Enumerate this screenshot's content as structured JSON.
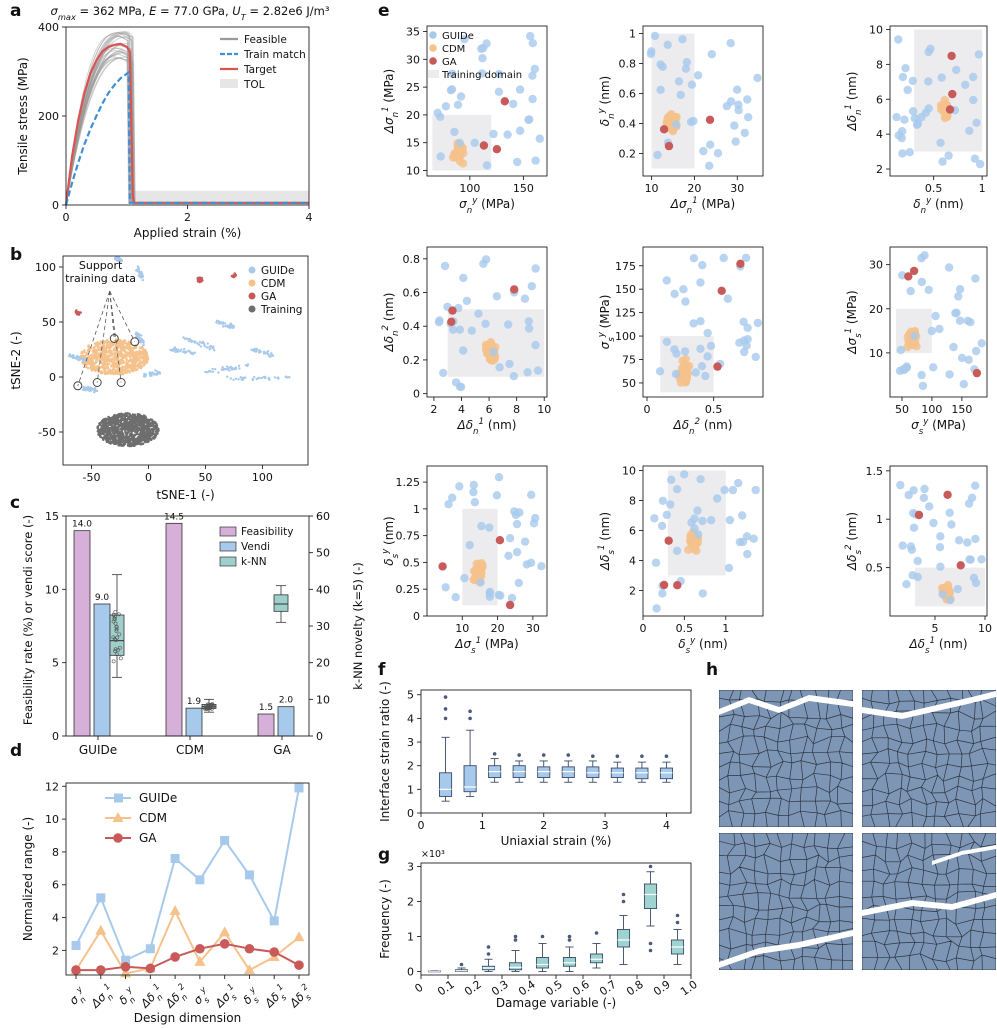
{
  "panels": {
    "a": "a",
    "b": "b",
    "c": "c",
    "d": "d",
    "e": "e",
    "f": "f",
    "g": "g",
    "h": "h"
  },
  "colors": {
    "guide": "#a7c9ec",
    "cdm": "#f5c28c",
    "ga": "#c95a5a",
    "training": "#6e6e6e",
    "feasibility": "#d6b0d8",
    "vendi": "#a7c9ec",
    "knn": "#9fcfca",
    "train_match": "#3d8fd6",
    "target": "#d9534f",
    "tol": "#e6e6e6",
    "region": "#ececee",
    "grain": "#7d96b5"
  },
  "chart_data": [
    {
      "id": "a",
      "type": "line",
      "title": "σ_max = 362 MPa, E = 77.0 GPa, U_T = 2.82e6 J/m³",
      "xlabel": "Applied strain (%)",
      "ylabel": "Tensile stress (MPa)",
      "xlim": [
        0,
        4
      ],
      "ylim": [
        0,
        400
      ],
      "xticks": [
        0,
        2,
        4
      ],
      "yticks": [
        0,
        200,
        400
      ],
      "legend": [
        "Feasible",
        "Train match",
        "Target",
        "TOL"
      ],
      "series": [
        {
          "name": "Target",
          "x": [
            0,
            0.1,
            0.2,
            0.3,
            0.4,
            0.5,
            0.6,
            0.7,
            0.8,
            0.9,
            1.0,
            1.05,
            1.1,
            1.12,
            4.0
          ],
          "y": [
            0,
            110,
            190,
            250,
            295,
            325,
            345,
            355,
            360,
            362,
            355,
            345,
            20,
            5,
            5
          ]
        },
        {
          "name": "Train match",
          "x": [
            0,
            0.1,
            0.2,
            0.3,
            0.4,
            0.5,
            0.6,
            0.7,
            0.8,
            0.9,
            1.0,
            1.03,
            1.05,
            4.0
          ],
          "y": [
            0,
            50,
            95,
            135,
            170,
            200,
            228,
            252,
            270,
            285,
            295,
            298,
            5,
            5
          ]
        }
      ]
    },
    {
      "id": "b",
      "type": "scatter",
      "xlabel": "tSNE-1 (-)",
      "ylabel": "tSNE-2 (-)",
      "xlim": [
        -75,
        140
      ],
      "ylim": [
        -80,
        110
      ],
      "xticks": [
        -50,
        0,
        50,
        100
      ],
      "yticks": [
        -50,
        0,
        50,
        100
      ],
      "legend": [
        "GUIDe",
        "CDM",
        "GA",
        "Training"
      ],
      "annotation": "Support training data"
    },
    {
      "id": "c",
      "type": "bar",
      "categories": [
        "GUIDe",
        "CDM",
        "GA"
      ],
      "ylabel": "Feasibility rate (%) or vendi score (-)",
      "ylabel_right": "k-NN novelty (k=5) (-)",
      "ylim": [
        0,
        15
      ],
      "ylim_right": [
        0,
        60
      ],
      "yticks": [
        0,
        5,
        10,
        15
      ],
      "yticks_right": [
        0,
        10,
        20,
        30,
        40,
        50,
        60
      ],
      "legend": [
        "Feasibility",
        "Vendi",
        "k-NN"
      ],
      "series": [
        {
          "name": "Feasibility",
          "values": [
            14.0,
            14.5,
            1.5
          ]
        },
        {
          "name": "Vendi",
          "values": [
            9.0,
            1.9,
            2.0
          ]
        }
      ],
      "value_labels": {
        "Feasibility": [
          "14.0",
          "14.5",
          "1.5"
        ],
        "Vendi": [
          "9.0",
          "1.9",
          "2.0"
        ]
      },
      "knn_box": [
        {
          "category": "GUIDe",
          "min": 16,
          "q1": 22,
          "median": 26,
          "q3": 33,
          "max": 44
        },
        {
          "category": "CDM",
          "min": 6.5,
          "q1": 7.5,
          "median": 8,
          "q3": 8.6,
          "max": 10
        },
        {
          "category": "GA",
          "min": 31,
          "q1": 34,
          "median": 36,
          "q3": 38.5,
          "max": 41
        }
      ]
    },
    {
      "id": "d",
      "type": "line",
      "xlabel": "Design dimension",
      "ylabel": "Normalized range (-)",
      "ylim": [
        0.5,
        12.2
      ],
      "yticks": [
        2,
        4,
        6,
        8,
        10,
        12
      ],
      "categories": [
        "σ_n^y",
        "Δσ_n^1",
        "δ_n^y",
        "Δδ_n^1",
        "Δδ_n^2",
        "σ_s^y",
        "Δσ_s^1",
        "δ_s^y",
        "Δδ_s^1",
        "Δδ_s^2"
      ],
      "legend": [
        "GUIDe",
        "CDM",
        "GA"
      ],
      "series": [
        {
          "name": "GUIDe",
          "values": [
            2.3,
            5.2,
            1.4,
            2.1,
            7.6,
            6.3,
            8.7,
            6.6,
            3.8,
            11.9
          ]
        },
        {
          "name": "CDM",
          "values": [
            0.8,
            3.2,
            0.6,
            0.9,
            4.4,
            1.3,
            3.1,
            0.8,
            1.6,
            2.8
          ]
        },
        {
          "name": "GA",
          "values": [
            0.8,
            0.8,
            1.0,
            0.9,
            1.6,
            2.1,
            2.4,
            2.1,
            1.9,
            1.1
          ]
        }
      ]
    },
    {
      "id": "e",
      "type": "scatter",
      "legend": [
        "GUIDe",
        "CDM",
        "GA",
        "Training domain"
      ],
      "subplots": [
        {
          "xlabel": "σ_n^y (MPa)",
          "ylabel": "Δσ_n^1 (MPa)",
          "xlim": [
            60,
            172
          ],
          "ylim": [
            9,
            36
          ],
          "xticks": [
            100,
            150
          ],
          "yticks": [
            10,
            15,
            20,
            25,
            30,
            35
          ],
          "domain": [
            65,
            120,
            10,
            20
          ]
        },
        {
          "xlabel": "Δσ_n^1 (MPa)",
          "ylabel": "δ_n^y (nm)",
          "xlim": [
            8,
            36
          ],
          "ylim": [
            0.05,
            1.05
          ],
          "xticks": [
            10,
            20,
            30
          ],
          "yticks": [
            0.2,
            0.4,
            0.6,
            0.8,
            1.0
          ],
          "domain": [
            10,
            20,
            0.1,
            1.0
          ]
        },
        {
          "xlabel": "δ_n^y (nm)",
          "ylabel": "Δδ_n^1 (nm)",
          "xlim": [
            0.05,
            1.05
          ],
          "ylim": [
            1.6,
            10.2
          ],
          "xticks": [
            0.5,
            1.0
          ],
          "yticks": [
            2,
            4,
            6,
            8,
            10
          ],
          "domain": [
            0.3,
            1.0,
            3,
            10
          ]
        },
        {
          "xlabel": "Δδ_n^1 (nm)",
          "ylabel": "Δδ_n^2 (nm)",
          "xlim": [
            1.5,
            10.2
          ],
          "ylim": [
            -0.02,
            0.87
          ],
          "xticks": [
            2,
            4,
            6,
            8,
            10
          ],
          "yticks": [
            0.0,
            0.2,
            0.4,
            0.6,
            0.8
          ],
          "domain": [
            3,
            10,
            0.1,
            0.5
          ]
        },
        {
          "xlabel": "Δδ_n^2 (nm)",
          "ylabel": "σ_s^y (MPa)",
          "xlim": [
            -0.03,
            0.87
          ],
          "ylim": [
            35,
            195
          ],
          "xticks": [
            0.0,
            0.5
          ],
          "yticks": [
            50,
            75,
            100,
            125,
            150,
            175
          ],
          "domain": [
            0.1,
            0.5,
            40,
            100
          ]
        },
        {
          "xlabel": "σ_s^y (MPa)",
          "ylabel": "Δσ_s^1 (MPa)",
          "xlim": [
            30,
            192
          ],
          "ylim": [
            0,
            34
          ],
          "xticks": [
            50,
            100,
            150
          ],
          "yticks": [
            10,
            20,
            30
          ],
          "domain": [
            40,
            100,
            10,
            20
          ]
        },
        {
          "xlabel": "Δσ_s^1 (MPa)",
          "ylabel": "δ_s^y (nm)",
          "xlim": [
            0,
            34
          ],
          "ylim": [
            0.0,
            1.4
          ],
          "xticks": [
            10,
            20,
            30
          ],
          "yticks": [
            0.0,
            0.25,
            0.5,
            0.75,
            1.0,
            1.25
          ],
          "domain": [
            10,
            20,
            0.1,
            1.0
          ]
        },
        {
          "xlabel": "δ_s^y (nm)",
          "ylabel": "Δδ_s^1 (nm)",
          "xlim": [
            0.0,
            1.45
          ],
          "ylim": [
            0.3,
            10.3
          ],
          "xticks": [
            0.0,
            0.5,
            1.0
          ],
          "yticks": [
            2,
            4,
            6,
            8,
            10
          ],
          "domain": [
            0.3,
            1.0,
            3,
            10
          ]
        },
        {
          "xlabel": "Δδ_s^1 (nm)",
          "ylabel": "Δδ_s^2 (nm)",
          "xlim": [
            0.5,
            10.2
          ],
          "ylim": [
            0.0,
            1.55
          ],
          "xticks": [
            5,
            10
          ],
          "yticks": [
            0.5,
            1.0,
            1.5
          ],
          "domain": [
            3,
            10,
            0.1,
            0.5
          ]
        }
      ]
    },
    {
      "id": "f",
      "type": "box",
      "xlabel": "Uniaxial strain (%)",
      "ylabel": "Interface strain ratio (-)",
      "xlim": [
        0,
        4.4
      ],
      "ylim": [
        0,
        5.2
      ],
      "xticks": [
        0,
        1,
        2,
        3,
        4
      ],
      "yticks": [
        0,
        1,
        2,
        3,
        4,
        5
      ],
      "boxes": [
        {
          "x": 0.4,
          "min": 0.5,
          "q1": 0.7,
          "median": 1.0,
          "q3": 1.7,
          "max": 3.2,
          "fliers": [
            4.0,
            4.4,
            4.9
          ]
        },
        {
          "x": 0.8,
          "min": 0.7,
          "q1": 0.9,
          "median": 1.1,
          "q3": 2.0,
          "max": 3.5,
          "fliers": [
            4.0,
            4.3
          ]
        },
        {
          "x": 1.2,
          "min": 1.3,
          "q1": 1.5,
          "median": 1.75,
          "q3": 2.0,
          "max": 2.3,
          "fliers": [
            2.5
          ]
        },
        {
          "x": 1.6,
          "min": 1.3,
          "q1": 1.5,
          "median": 1.75,
          "q3": 2.0,
          "max": 2.2,
          "fliers": [
            2.45
          ]
        },
        {
          "x": 2.0,
          "min": 1.3,
          "q1": 1.5,
          "median": 1.75,
          "q3": 1.95,
          "max": 2.2,
          "fliers": [
            2.45
          ]
        },
        {
          "x": 2.4,
          "min": 1.3,
          "q1": 1.5,
          "median": 1.75,
          "q3": 1.95,
          "max": 2.2,
          "fliers": [
            2.45
          ]
        },
        {
          "x": 2.8,
          "min": 1.3,
          "q1": 1.5,
          "median": 1.7,
          "q3": 1.95,
          "max": 2.2,
          "fliers": [
            2.4
          ]
        },
        {
          "x": 3.2,
          "min": 1.3,
          "q1": 1.5,
          "median": 1.7,
          "q3": 1.9,
          "max": 2.15,
          "fliers": [
            2.4
          ]
        },
        {
          "x": 3.6,
          "min": 1.3,
          "q1": 1.45,
          "median": 1.7,
          "q3": 1.9,
          "max": 2.15,
          "fliers": [
            2.4
          ]
        },
        {
          "x": 4.0,
          "min": 1.3,
          "q1": 1.45,
          "median": 1.7,
          "q3": 1.9,
          "max": 2.15,
          "fliers": [
            2.4
          ]
        }
      ]
    },
    {
      "id": "g",
      "type": "box",
      "xlabel": "Damage variable (-)",
      "ylabel": "Frequency (-)",
      "multiplier": "×10³",
      "xlim": [
        0,
        1.0
      ],
      "ylim": [
        -0.1,
        3.1
      ],
      "xticks": [
        0,
        0.1,
        0.2,
        0.3,
        0.4,
        0.5,
        0.6,
        0.7,
        0.8,
        0.9,
        1.0
      ],
      "xtick_labels": [
        "0",
        "0.1",
        "0.2",
        "0.3",
        "0.4",
        "0.5",
        "0.6",
        "0.7",
        "0.8",
        "0.9",
        "1.0"
      ],
      "yticks": [
        0,
        1,
        2,
        3
      ],
      "boxes": [
        {
          "x": 0.05,
          "min": 0.0,
          "q1": 0.0,
          "median": 0.01,
          "q3": 0.02,
          "max": 0.03,
          "fliers": []
        },
        {
          "x": 0.15,
          "min": 0.0,
          "q1": 0.0,
          "median": 0.02,
          "q3": 0.05,
          "max": 0.1,
          "fliers": [
            0.2
          ]
        },
        {
          "x": 0.25,
          "min": 0.0,
          "q1": 0.05,
          "median": 0.1,
          "q3": 0.15,
          "max": 0.35,
          "fliers": [
            0.5,
            0.7
          ]
        },
        {
          "x": 0.35,
          "min": 0.0,
          "q1": 0.05,
          "median": 0.12,
          "q3": 0.25,
          "max": 0.6,
          "fliers": [
            0.9,
            1.0
          ]
        },
        {
          "x": 0.45,
          "min": 0.0,
          "q1": 0.1,
          "median": 0.2,
          "q3": 0.4,
          "max": 0.8,
          "fliers": [
            1.0
          ]
        },
        {
          "x": 0.55,
          "min": 0.0,
          "q1": 0.15,
          "median": 0.25,
          "q3": 0.4,
          "max": 0.7,
          "fliers": [
            0.9,
            1.0
          ]
        },
        {
          "x": 0.65,
          "min": 0.1,
          "q1": 0.25,
          "median": 0.35,
          "q3": 0.5,
          "max": 0.8,
          "fliers": [
            1.1
          ]
        },
        {
          "x": 0.75,
          "min": 0.2,
          "q1": 0.7,
          "median": 0.9,
          "q3": 1.2,
          "max": 1.6,
          "fliers": [
            2.0,
            2.2
          ]
        },
        {
          "x": 0.85,
          "min": 1.3,
          "q1": 1.8,
          "median": 2.2,
          "q3": 2.5,
          "max": 2.85,
          "fliers": [
            3.0,
            0.8,
            0.6
          ]
        },
        {
          "x": 0.95,
          "min": 0.2,
          "q1": 0.5,
          "median": 0.7,
          "q3": 0.9,
          "max": 1.2,
          "fliers": [
            1.4,
            1.6
          ]
        }
      ]
    }
  ]
}
